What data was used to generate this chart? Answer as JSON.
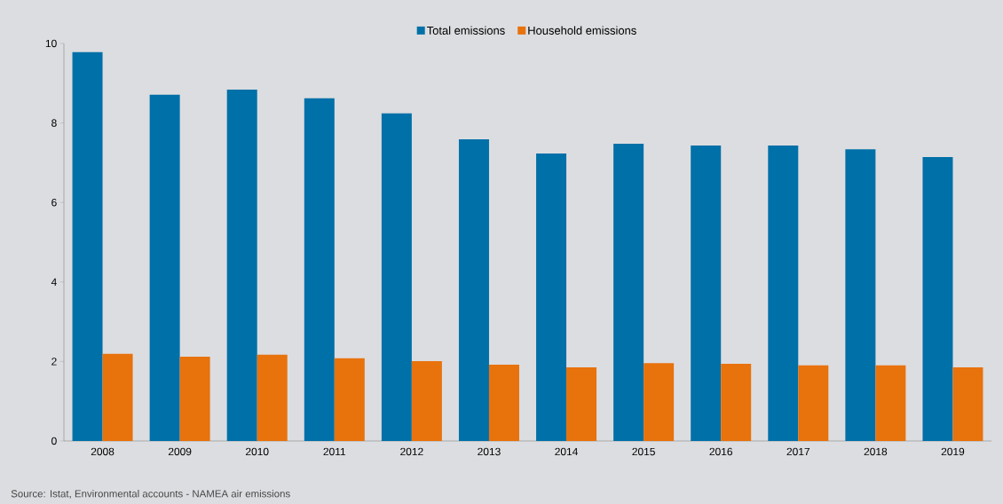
{
  "chart_data": {
    "type": "bar",
    "categories": [
      "2008",
      "2009",
      "2010",
      "2011",
      "2012",
      "2013",
      "2014",
      "2015",
      "2016",
      "2017",
      "2018",
      "2019"
    ],
    "series": [
      {
        "name": "Total emissions",
        "color": "#0070a8",
        "values": [
          9.78,
          8.71,
          8.84,
          8.62,
          8.24,
          7.59,
          7.23,
          7.48,
          7.43,
          7.43,
          7.34,
          7.14
        ]
      },
      {
        "name": "Household emissions",
        "color": "#e8720c",
        "values": [
          2.19,
          2.12,
          2.17,
          2.08,
          2.01,
          1.92,
          1.85,
          1.96,
          1.94,
          1.9,
          1.9,
          1.85
        ]
      }
    ],
    "ylim": [
      0,
      10
    ],
    "yticks": [
      0,
      2,
      4,
      6,
      8,
      10
    ],
    "grid": false,
    "legend": "top",
    "annotations": [
      "Source: Istat, Environmental accounts - NAMEA air emissions"
    ]
  }
}
